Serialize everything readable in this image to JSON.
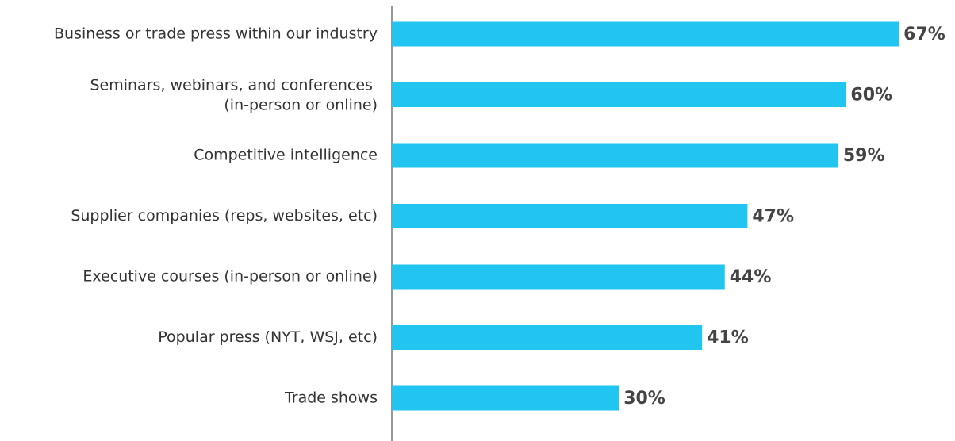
{
  "chart_data": {
    "type": "bar",
    "orientation": "horizontal",
    "categories": [
      "Business or trade press within our industry",
      "Seminars, webinars, and conferences (in-person or online)",
      "Competitive intelligence",
      "Supplier companies (reps, websites, etc)",
      "Executive courses (in-person or online)",
      "Popular press (NYT, WSJ, etc)",
      "Trade shows"
    ],
    "values": [
      67,
      60,
      59,
      47,
      44,
      41,
      30
    ],
    "value_labels": [
      "67%",
      "60%",
      "59%",
      "47%",
      "44%",
      "41%",
      "30%"
    ],
    "color": "#22c4f0"
  }
}
